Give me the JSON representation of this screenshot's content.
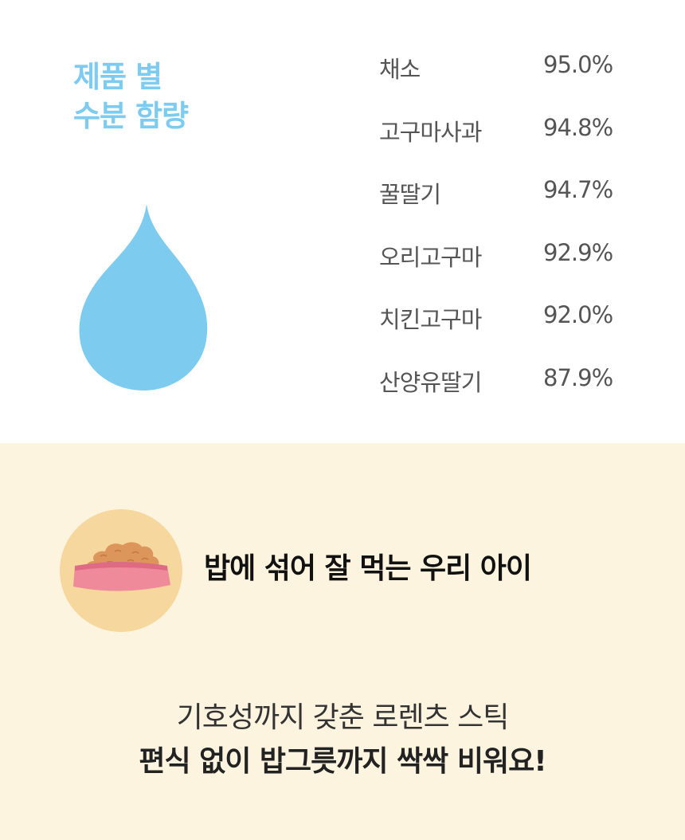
{
  "title": {
    "line1": "제품 별",
    "line2": "수분 함량"
  },
  "colors": {
    "accent": "#7ecbf0",
    "bottom_bg": "#fdf4e0",
    "circle": "#f6d79e",
    "bowl": "#ef8a9a",
    "food": "#dc955a"
  },
  "table": [
    {
      "name": "채소",
      "value": "95.0%"
    },
    {
      "name": "고구마사과",
      "value": "94.8%"
    },
    {
      "name": "꿀딸기",
      "value": "94.7%"
    },
    {
      "name": "오리고구마",
      "value": "92.9%"
    },
    {
      "name": "치킨고구마",
      "value": "92.0%"
    },
    {
      "name": "산양유딸기",
      "value": "87.9%"
    }
  ],
  "bottom": {
    "heading": "밥에 섞어 잘 먹는 우리 아이",
    "line1": "기호성까지 갖춘 로렌츠 스틱",
    "line2": "편식 없이 밥그릇까지 싹싹 비워요!"
  },
  "icons": [
    "water-drop-icon",
    "food-bowl-icon"
  ]
}
